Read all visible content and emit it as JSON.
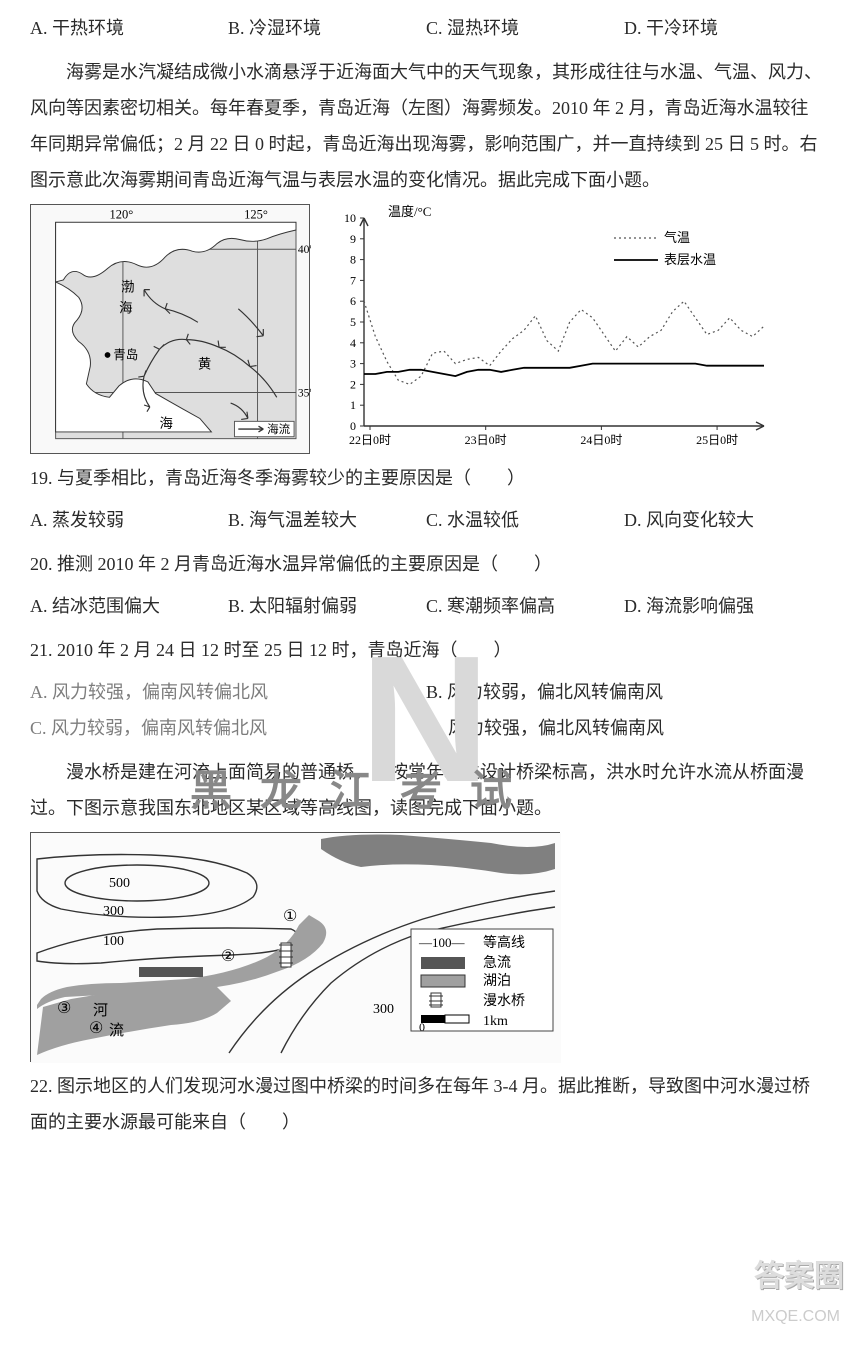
{
  "q18_options": {
    "a": "A.  干热环境",
    "b": "B.  冷湿环境",
    "c": "C.  湿热环境",
    "d": "D.  干冷环境"
  },
  "passage_fog": "海雾是水汽凝结成微小水滴悬浮于近海面大气中的天气现象，其形成往往与水温、气温、风力、风向等因素密切相关。每年春夏季，青岛近海（左图）海雾频发。2010 年 2 月，青岛近海水温较往年同期异常偏低；2 月 22 日 0 时起，青岛近海出现海雾，影响范围广，并一直持续到 25 日 5 时。右图示意此次海雾期间青岛近海气温与表层水温的变化情况。据此完成下面小题。",
  "map": {
    "lon_left": "120°",
    "lon_right": "125°",
    "lat_top": "40°",
    "lat_bottom": "35°",
    "labels": {
      "bohai1": "渤",
      "bohai2": "海",
      "qingdao": "青岛",
      "huanghai1": "黄",
      "huanghai2": "海",
      "current": "海流"
    },
    "grid_color": "#555555",
    "sea_color": "#dedede",
    "land_color": "#ffffff"
  },
  "chart": {
    "type": "line",
    "ylabel": "温度/°C",
    "ylim": [
      0,
      10
    ],
    "ytick_step": 1,
    "x_ticks": [
      "22日0时",
      "23日0时",
      "24日0时",
      "25日0时"
    ],
    "legend": {
      "dotted": "气温",
      "solid": "表层水温"
    },
    "background_color": "#ffffff",
    "axis_color": "#333333",
    "grid": false,
    "air_temp_y": [
      6.0,
      4.3,
      3.1,
      2.2,
      2.0,
      2.4,
      3.5,
      3.6,
      3.0,
      3.2,
      3.3,
      2.9,
      3.6,
      4.2,
      4.6,
      5.3,
      4.1,
      3.6,
      5.0,
      5.6,
      5.2,
      4.4,
      3.6,
      4.3,
      3.8,
      4.3,
      4.6,
      5.5,
      6.0,
      5.2,
      4.4,
      4.6,
      5.2,
      4.6,
      4.3,
      4.8
    ],
    "water_temp_y": [
      2.5,
      2.5,
      2.6,
      2.6,
      2.7,
      2.7,
      2.6,
      2.5,
      2.4,
      2.6,
      2.7,
      2.7,
      2.6,
      2.7,
      2.8,
      2.8,
      2.8,
      2.8,
      2.8,
      2.9,
      3.0,
      3.0,
      3.0,
      3.0,
      3.0,
      3.0,
      3.0,
      3.0,
      3.0,
      3.0,
      2.9,
      2.9,
      2.9,
      2.9,
      2.9,
      2.9
    ],
    "air_temp_color": "#555555",
    "water_temp_color": "#000000",
    "line_width_solid": 1.8,
    "line_width_dotted": 1.2
  },
  "q19": {
    "text": "19.  与夏季相比，青岛近海冬季海雾较少的主要原因是（　　）",
    "a": "A.  蒸发较弱",
    "b": "B.  海气温差较大",
    "c": "C.  水温较低",
    "d": "D.  风向变化较大"
  },
  "q20": {
    "text": "20.  推测 2010 年 2 月青岛近海水温异常偏低的主要原因是（　　）",
    "a": "A.  结冰范围偏大",
    "b": "B.  太阳辐射偏弱",
    "c": "C.  寒潮频率偏高",
    "d": "D.  海流影响偏强"
  },
  "q21": {
    "text": "21.  2010 年 2 月 24 日 12 时至 25 日 12 时，青岛近海（　　）",
    "a": "A.  风力较强，偏南风转偏北风",
    "b": "B.  风力较弱，偏北风转偏南风",
    "c": "C.  风力较弱，偏南风转偏北风",
    "d": "D.  风力较强，偏北风转偏南风"
  },
  "passage_bridge": "漫水桥是建在河流上面简易的普通桥，多按常年水位设计桥梁标高，洪水时允许水流从桥面漫过。下图示意我国东北地区某区域等高线图，读图完成下面小题。",
  "contour_map": {
    "contours": [
      "500",
      "300",
      "100",
      "300"
    ],
    "labels": {
      "river1": "河",
      "river2": "流",
      "points": [
        "①",
        "②",
        "③",
        "④"
      ]
    },
    "legend": {
      "contour": {
        "symbol": "—100—",
        "text": "等高线"
      },
      "rapids": {
        "text": "急流"
      },
      "lake": {
        "text": "湖泊"
      },
      "bridge": {
        "text": "漫水桥"
      },
      "scale_text": "1km",
      "scale_zero": "0"
    },
    "river_color": "#808080",
    "lake_color": "#a0a0a0",
    "bg": "#fbfbfb",
    "line_color": "#333333"
  },
  "q22": {
    "text": "22.  图示地区的人们发现河水漫过图中桥梁的时间多在每年 3-4 月。据此推断，导致图中河水漫过桥面的主要水源最可能来自（　　）"
  },
  "watermark": "黑龙江考试",
  "corner_badge": "答案圈",
  "corner_url": "MXQE.COM"
}
